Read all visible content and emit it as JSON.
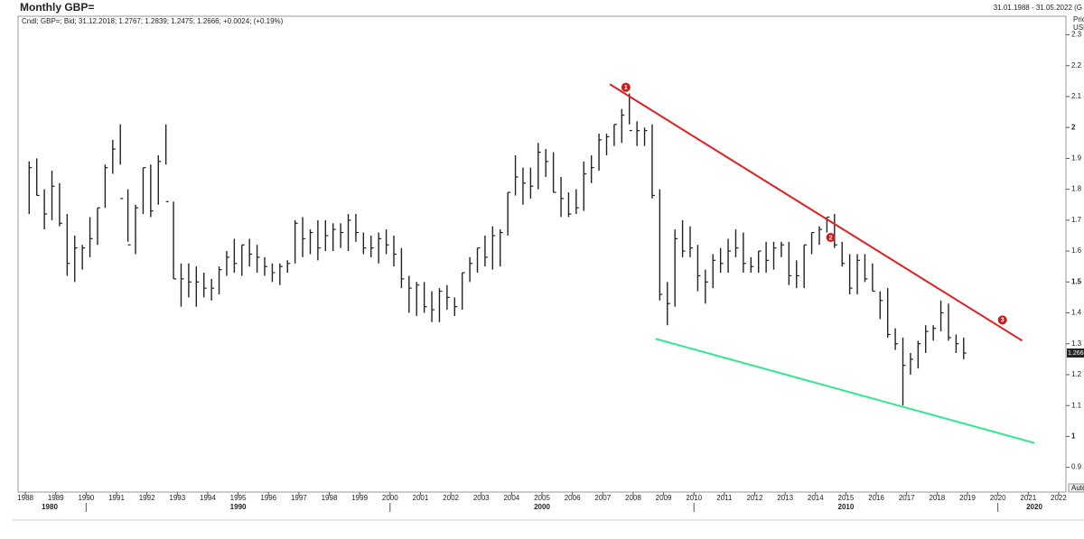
{
  "chart_data": {
    "type": "ohlc",
    "title": "Monthly GBP=",
    "date_range": "31.01.1988 - 31.05.2022 (G",
    "info": "Cndl; GBP=; Bid; 31.12.2018; 1.2767; 1.2839; 1.2475; 1.2666; +0.0024; (+0.19%)",
    "axis_label": [
      "Price",
      "USD"
    ],
    "last_price": "1.2666",
    "auto_label": "Auto",
    "color": "#222222",
    "x": [
      1988.125,
      1988.375,
      1988.625,
      1988.875,
      1989.125,
      1989.375,
      1989.625,
      1989.875,
      1990.125,
      1990.375,
      1990.625,
      1990.875,
      1991.125,
      1991.375,
      1991.625,
      1991.875,
      1992.125,
      1992.375,
      1992.625,
      1992.875,
      1993.125,
      1993.375,
      1993.625,
      1993.875,
      1994.125,
      1994.375,
      1994.625,
      1994.875,
      1995.125,
      1995.375,
      1995.625,
      1995.875,
      1996.125,
      1996.375,
      1996.625,
      1996.875,
      1997.125,
      1997.375,
      1997.625,
      1997.875,
      1998.125,
      1998.375,
      1998.625,
      1998.875,
      1999.125,
      1999.375,
      1999.625,
      1999.875,
      2000.125,
      2000.375,
      2000.625,
      2000.875,
      2001.125,
      2001.375,
      2001.625,
      2001.875,
      2002.125,
      2002.375,
      2002.625,
      2002.875,
      2003.125,
      2003.375,
      2003.625,
      2003.875,
      2004.125,
      2004.375,
      2004.625,
      2004.875,
      2005.125,
      2005.375,
      2005.625,
      2005.875,
      2006.125,
      2006.375,
      2006.625,
      2006.875,
      2007.125,
      2007.375,
      2007.625,
      2007.875,
      2008.125,
      2008.375,
      2008.625,
      2008.875,
      2009.125,
      2009.375,
      2009.625,
      2009.875,
      2010.125,
      2010.375,
      2010.625,
      2010.875,
      2011.125,
      2011.375,
      2011.625,
      2011.875,
      2012.125,
      2012.375,
      2012.625,
      2012.875,
      2013.125,
      2013.375,
      2013.625,
      2013.875,
      2014.125,
      2014.375,
      2014.625,
      2014.875,
      2015.125,
      2015.375,
      2015.625,
      2015.875,
      2016.125,
      2016.375,
      2016.625,
      2016.875,
      2017.125,
      2017.375,
      2017.625,
      2017.875,
      2018.125,
      2018.375,
      2018.625,
      2018.875
    ],
    "high": [
      1.89,
      1.9,
      1.8,
      1.86,
      1.82,
      1.72,
      1.65,
      1.62,
      1.71,
      1.74,
      1.88,
      1.96,
      2.01,
      1.8,
      1.75,
      1.87,
      1.88,
      1.91,
      2.01,
      1.76,
      1.56,
      1.56,
      1.55,
      1.53,
      1.51,
      1.55,
      1.6,
      1.64,
      1.62,
      1.64,
      1.62,
      1.58,
      1.56,
      1.56,
      1.57,
      1.7,
      1.71,
      1.67,
      1.7,
      1.7,
      1.69,
      1.69,
      1.72,
      1.72,
      1.66,
      1.65,
      1.66,
      1.67,
      1.65,
      1.61,
      1.52,
      1.5,
      1.5,
      1.47,
      1.48,
      1.49,
      1.45,
      1.53,
      1.58,
      1.61,
      1.65,
      1.68,
      1.67,
      1.79,
      1.91,
      1.87,
      1.87,
      1.95,
      1.93,
      1.92,
      1.84,
      1.79,
      1.8,
      1.89,
      1.91,
      1.98,
      1.98,
      2.01,
      2.06,
      2.11,
      2.02,
      2.0,
      2.01,
      1.8,
      1.5,
      1.67,
      1.7,
      1.68,
      1.62,
      1.54,
      1.59,
      1.61,
      1.64,
      1.67,
      1.66,
      1.58,
      1.6,
      1.63,
      1.63,
      1.63,
      1.63,
      1.57,
      1.62,
      1.66,
      1.68,
      1.71,
      1.72,
      1.63,
      1.59,
      1.59,
      1.59,
      1.56,
      1.47,
      1.48,
      1.35,
      1.32,
      1.27,
      1.31,
      1.36,
      1.36,
      1.44,
      1.43,
      1.33,
      1.32
    ],
    "low": [
      1.72,
      1.78,
      1.67,
      1.7,
      1.68,
      1.52,
      1.5,
      1.54,
      1.58,
      1.62,
      1.74,
      1.85,
      1.88,
      1.63,
      1.59,
      1.72,
      1.71,
      1.75,
      1.88,
      1.51,
      1.42,
      1.45,
      1.42,
      1.45,
      1.44,
      1.46,
      1.52,
      1.53,
      1.52,
      1.55,
      1.53,
      1.52,
      1.5,
      1.49,
      1.53,
      1.56,
      1.58,
      1.59,
      1.57,
      1.6,
      1.6,
      1.61,
      1.6,
      1.63,
      1.59,
      1.58,
      1.56,
      1.59,
      1.55,
      1.48,
      1.4,
      1.39,
      1.4,
      1.37,
      1.37,
      1.41,
      1.39,
      1.41,
      1.5,
      1.53,
      1.55,
      1.54,
      1.55,
      1.65,
      1.78,
      1.75,
      1.77,
      1.8,
      1.84,
      1.79,
      1.71,
      1.71,
      1.72,
      1.73,
      1.82,
      1.86,
      1.91,
      1.94,
      1.95,
      2.01,
      1.94,
      1.94,
      1.77,
      1.44,
      1.36,
      1.42,
      1.58,
      1.58,
      1.47,
      1.43,
      1.48,
      1.53,
      1.53,
      1.58,
      1.53,
      1.53,
      1.53,
      1.53,
      1.54,
      1.58,
      1.49,
      1.48,
      1.48,
      1.59,
      1.62,
      1.66,
      1.61,
      1.55,
      1.46,
      1.46,
      1.5,
      1.47,
      1.38,
      1.32,
      1.28,
      1.1,
      1.2,
      1.22,
      1.27,
      1.31,
      1.34,
      1.31,
      1.27,
      1.25
    ],
    "close": [
      1.87,
      1.78,
      1.72,
      1.81,
      1.69,
      1.56,
      1.61,
      1.61,
      1.64,
      1.74,
      1.87,
      1.93,
      1.77,
      1.62,
      1.74,
      1.87,
      1.73,
      1.89,
      1.76,
      1.51,
      1.51,
      1.5,
      1.5,
      1.48,
      1.48,
      1.54,
      1.58,
      1.56,
      1.62,
      1.59,
      1.58,
      1.55,
      1.53,
      1.55,
      1.56,
      1.69,
      1.64,
      1.66,
      1.61,
      1.65,
      1.67,
      1.66,
      1.7,
      1.66,
      1.61,
      1.61,
      1.64,
      1.62,
      1.59,
      1.51,
      1.48,
      1.49,
      1.42,
      1.41,
      1.47,
      1.45,
      1.42,
      1.53,
      1.56,
      1.61,
      1.58,
      1.65,
      1.66,
      1.79,
      1.84,
      1.82,
      1.81,
      1.92,
      1.89,
      1.79,
      1.77,
      1.72,
      1.74,
      1.85,
      1.87,
      1.96,
      1.97,
      2.01,
      2.04,
      1.99,
      1.99,
      1.99,
      1.78,
      1.46,
      1.43,
      1.64,
      1.6,
      1.61,
      1.52,
      1.5,
      1.57,
      1.56,
      1.6,
      1.61,
      1.56,
      1.55,
      1.6,
      1.57,
      1.61,
      1.62,
      1.52,
      1.52,
      1.62,
      1.66,
      1.67,
      1.71,
      1.62,
      1.56,
      1.48,
      1.57,
      1.51,
      1.47,
      1.44,
      1.33,
      1.3,
      1.23,
      1.25,
      1.3,
      1.34,
      1.35,
      1.4,
      1.32,
      1.3,
      1.27
    ],
    "xlim": [
      1987.76,
      2022.24
    ],
    "ylim": [
      0.82,
      2.36
    ],
    "xticks": [
      1988,
      1989,
      1990,
      1991,
      1992,
      1993,
      1994,
      1995,
      1996,
      1997,
      1998,
      1999,
      2000,
      2001,
      2002,
      2003,
      2004,
      2005,
      2006,
      2007,
      2008,
      2009,
      2010,
      2011,
      2012,
      2013,
      2014,
      2015,
      2016,
      2017,
      2018,
      2019,
      2020,
      2021,
      2022
    ],
    "decades": [
      1980,
      1990,
      2000,
      2010,
      2020
    ],
    "yticks": [
      0.9,
      1,
      1.1,
      1.2,
      1.3,
      1.4,
      1.5,
      1.6,
      1.7,
      1.8,
      1.9,
      2,
      2.1,
      2.2,
      2.3
    ],
    "trendlines": [
      {
        "color": "#e02020",
        "x": [
          2007.23,
          2020.8
        ],
        "y": [
          2.14,
          1.31
        ]
      },
      {
        "color": "#33e890",
        "x": [
          2008.74,
          2021.2
        ],
        "y": [
          1.316,
          0.979
        ]
      }
    ],
    "annotations": [
      {
        "label": "1",
        "x": 2007.76,
        "y": 2.13
      },
      {
        "label": "2",
        "x": 2014.5,
        "y": 1.644
      },
      {
        "label": "3",
        "x": 2020.15,
        "y": 1.377
      }
    ]
  }
}
